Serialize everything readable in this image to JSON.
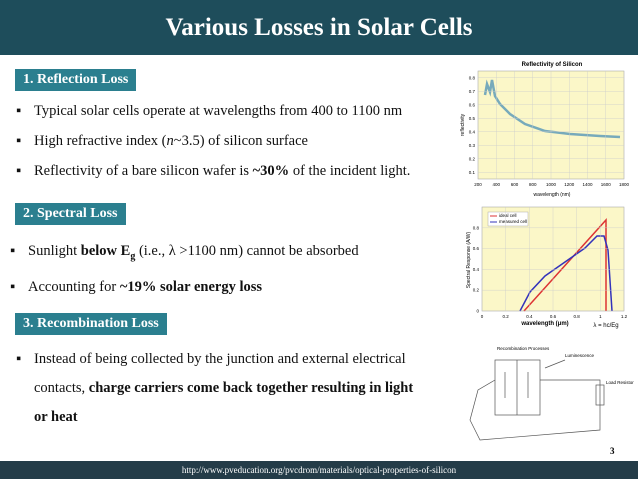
{
  "header": {
    "title": "Various Losses in Solar Cells"
  },
  "sections": [
    {
      "label": "1. Reflection Loss",
      "bullets": [
        [
          "Typical solar cells operate at wavelengths from 400 to 1100 nm"
        ],
        [
          "High refractive index (",
          "n",
          "~3.5) of  silicon surface"
        ],
        [
          "Reflectivity of a bare silicon wafer is ",
          "~30%",
          " of the incident light."
        ]
      ]
    },
    {
      "label": "2. Spectral Loss",
      "bullets": [
        [
          "Sunlight ",
          "below E",
          "g",
          " (i.e., λ >1100 nm) cannot be absorbed"
        ],
        [
          "Accounting for ",
          "~19% solar energy loss"
        ]
      ]
    },
    {
      "label": "3. Recombination Loss",
      "bullets": [
        [
          "Instead of being collected by the junction and external electrical contacts, ",
          "charge carriers come back together resulting in light or heat"
        ]
      ]
    }
  ],
  "figures": [
    {
      "title": "Reflectivity of Silicon",
      "x_label": "wavelength (nm)",
      "y_label": "reflectivity",
      "xticks": [
        "200",
        "400",
        "600",
        "800",
        "1000",
        "1200",
        "1400",
        "1600",
        "1800"
      ],
      "yticks": [
        "0.8",
        "0.7",
        "0.6",
        "0.5",
        "0.4",
        "0.3",
        "0.2",
        "0.1"
      ]
    },
    {
      "x_label": "wavelength (μm)",
      "y_label": "Spectral Response (A/W)",
      "legend": [
        "ideal cell",
        "measured cell"
      ],
      "xticks": [
        "0",
        "0.2",
        "0.4",
        "0.6",
        "0.8",
        "1",
        "1.2"
      ],
      "yticks": [
        "0.8",
        "0.6",
        "0.4",
        "0.2",
        "0"
      ],
      "annotation": "λ = hc/Eg"
    },
    {
      "labels": [
        "Recombination Processes",
        "Luminescence",
        "Load Resistor"
      ]
    }
  ],
  "page_number": "3",
  "footer": "http://www.pveducation.org/pvcdrom/materials/optical-properties-of-silicon"
}
